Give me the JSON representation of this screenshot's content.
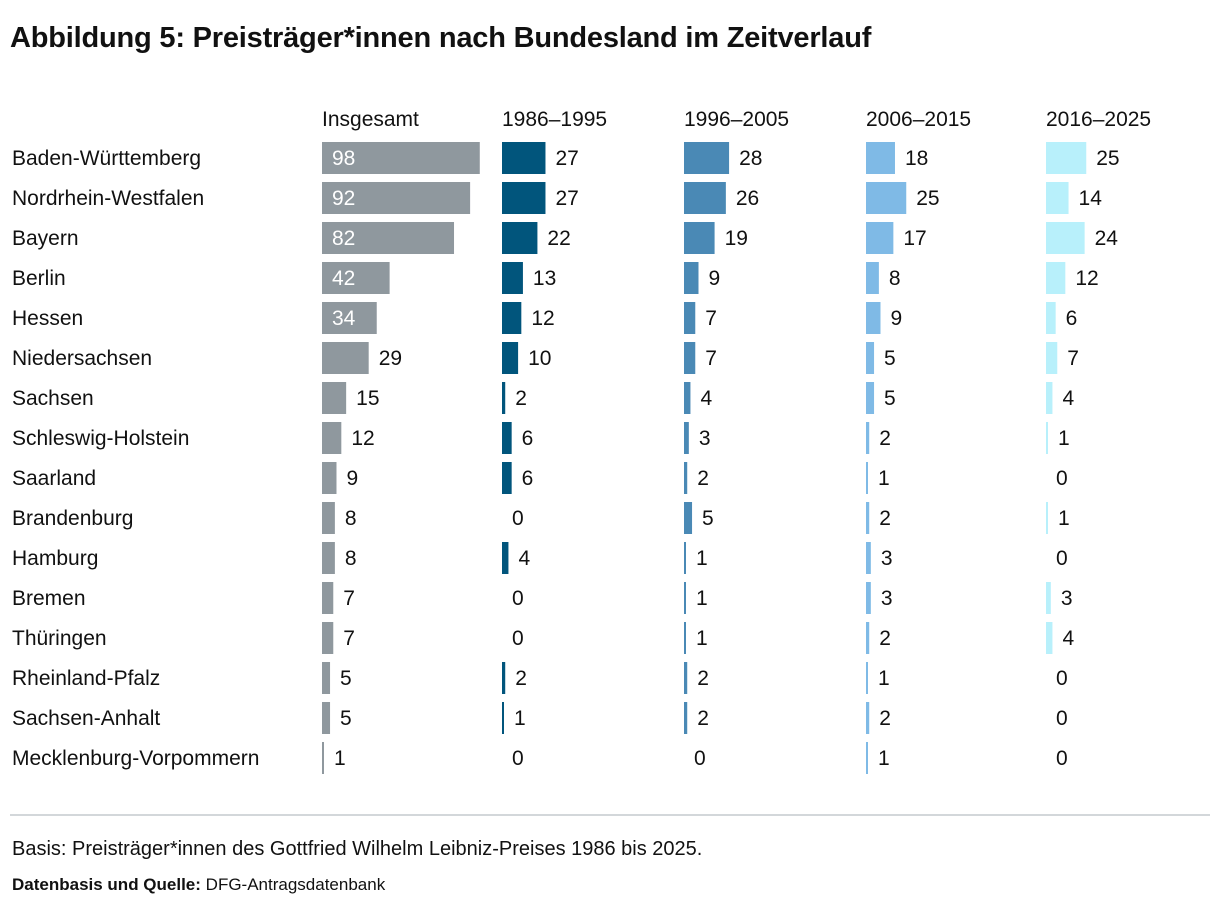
{
  "title": "Abbildung 5: Preisträger*innen nach Bundesland im Zeitverlauf",
  "chart_data": {
    "type": "bar",
    "orientation": "horizontal",
    "categories": [
      "Baden-Württemberg",
      "Nordrhein-Westfalen",
      "Bayern",
      "Berlin",
      "Hessen",
      "Niedersachsen",
      "Sachsen",
      "Schleswig-Holstein",
      "Saarland",
      "Brandenburg",
      "Hamburg",
      "Bremen",
      "Thüringen",
      "Rheinland-Pfalz",
      "Sachsen-Anhalt",
      "Mecklenburg-Vorpommern"
    ],
    "series": [
      {
        "name": "Insgesamt",
        "color": "#8f989e",
        "values": [
          98,
          92,
          82,
          42,
          34,
          29,
          15,
          12,
          9,
          8,
          8,
          7,
          7,
          5,
          5,
          1
        ]
      },
      {
        "name": "1986–1995",
        "color": "#01557c",
        "values": [
          27,
          27,
          22,
          13,
          12,
          10,
          2,
          6,
          6,
          0,
          4,
          0,
          0,
          2,
          1,
          0
        ]
      },
      {
        "name": "1996–2005",
        "color": "#4a89b5",
        "values": [
          28,
          26,
          19,
          9,
          7,
          7,
          4,
          3,
          2,
          5,
          1,
          1,
          1,
          2,
          2,
          0
        ]
      },
      {
        "name": "2006–2015",
        "color": "#7fbae6",
        "values": [
          18,
          25,
          17,
          8,
          9,
          5,
          5,
          2,
          1,
          2,
          3,
          3,
          2,
          1,
          2,
          1
        ]
      },
      {
        "name": "2016–2025",
        "color": "#b8f0fb",
        "values": [
          25,
          14,
          24,
          12,
          6,
          7,
          4,
          1,
          0,
          1,
          0,
          3,
          4,
          0,
          0,
          0
        ]
      }
    ],
    "legend": "column headers",
    "grid": false
  },
  "footer": {
    "basis": "Basis: Preisträger*innen des Gottfried Wilhelm Leibniz-Preises 1986 bis 2025.",
    "source_label": "Datenbasis und Quelle:",
    "source_value": "DFG-Antragsdatenbank"
  }
}
